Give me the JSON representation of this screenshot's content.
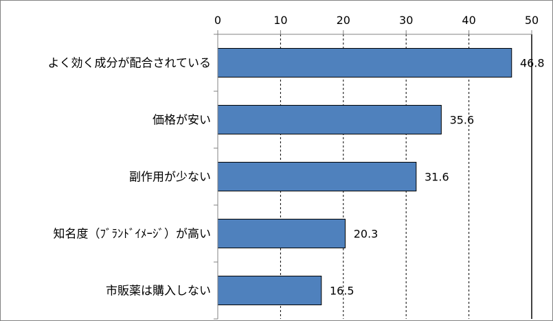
{
  "chart_data": {
    "type": "bar",
    "orientation": "horizontal",
    "categories": [
      "よく効く成分が配合されている",
      "価格が安い",
      "副作用が少ない",
      "知名度（ﾌﾞﾗﾝﾄﾞｲﾒｰｼﾞ）が高い",
      "市販薬は購入しない"
    ],
    "values": [
      46.8,
      35.6,
      31.6,
      20.3,
      16.5
    ],
    "x_ticks": [
      "0",
      "10",
      "20",
      "30",
      "40",
      "50"
    ],
    "xlim": [
      0,
      50
    ],
    "axis_position": "top",
    "grid": true,
    "legend": "none",
    "bar_color": "#4f81bd",
    "bar_edge_color": "#000000"
  }
}
